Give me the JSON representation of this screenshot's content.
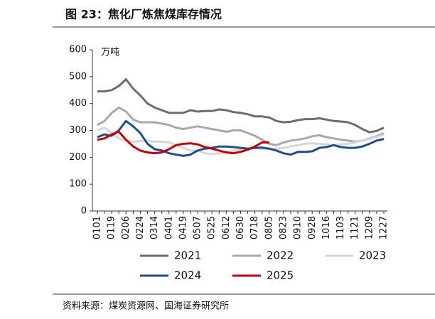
{
  "chart_data": {
    "type": "line",
    "title": "图 23：焦化厂炼焦煤库存情况",
    "y_label": "万吨",
    "source": "资料来源：煤炭资源网、国海证券研究所",
    "categories": [
      "0101",
      null,
      "0119",
      null,
      "0206",
      null,
      "0224",
      null,
      "0314",
      null,
      "0401",
      null,
      "0419",
      null,
      "0507",
      null,
      "0525",
      null,
      "0612",
      null,
      "0630",
      null,
      "0718",
      null,
      "0805",
      null,
      "0823",
      null,
      "0910",
      null,
      "0928",
      null,
      "1016",
      null,
      "1103",
      null,
      "1121",
      null,
      "1209",
      null,
      "1227"
    ],
    "ylim": [
      0,
      600
    ],
    "yticks": [
      0,
      100,
      200,
      300,
      400,
      500,
      600
    ],
    "series": [
      {
        "name": "2021",
        "color": "#6d6d6d",
        "values": [
          445,
          445,
          450,
          465,
          490,
          455,
          430,
          400,
          385,
          375,
          365,
          365,
          365,
          375,
          370,
          372,
          372,
          378,
          375,
          368,
          365,
          360,
          352,
          352,
          348,
          335,
          330,
          332,
          338,
          342,
          342,
          345,
          340,
          335,
          333,
          330,
          320,
          305,
          293,
          298,
          310
        ]
      },
      {
        "name": "2022",
        "color": "#a9a9a9",
        "values": [
          320,
          335,
          365,
          385,
          370,
          340,
          330,
          330,
          330,
          325,
          320,
          310,
          305,
          310,
          315,
          310,
          305,
          300,
          295,
          300,
          300,
          290,
          280,
          265,
          250,
          245,
          255,
          262,
          265,
          270,
          278,
          282,
          275,
          270,
          265,
          262,
          258,
          262,
          270,
          278,
          290
        ]
      },
      {
        "name": "2023",
        "color": "#d6d6d6",
        "values": [
          300,
          310,
          290,
          270,
          262,
          258,
          260,
          262,
          258,
          258,
          255,
          245,
          235,
          225,
          225,
          215,
          212,
          215,
          218,
          225,
          228,
          230,
          235,
          232,
          230,
          232,
          235,
          240,
          245,
          250,
          252,
          250,
          248,
          245,
          248,
          250,
          255,
          262,
          268,
          275,
          285
        ]
      },
      {
        "name": "2024",
        "color": "#1f4e8c",
        "values": [
          275,
          285,
          280,
          300,
          335,
          315,
          290,
          250,
          230,
          225,
          215,
          210,
          205,
          210,
          225,
          232,
          235,
          240,
          240,
          238,
          235,
          232,
          235,
          236,
          232,
          225,
          215,
          210,
          220,
          220,
          222,
          235,
          238,
          245,
          238,
          235,
          235,
          240,
          250,
          262,
          268
        ]
      },
      {
        "name": "2025",
        "color": "#c00000",
        "values": [
          265,
          270,
          285,
          295,
          265,
          240,
          225,
          218,
          215,
          218,
          230,
          245,
          250,
          252,
          248,
          238,
          232,
          225,
          218,
          215,
          220,
          228,
          240,
          255,
          255,
          null,
          null,
          null,
          null,
          null,
          null,
          null,
          null,
          null,
          null,
          null,
          null,
          null,
          null,
          null,
          null
        ]
      }
    ]
  }
}
